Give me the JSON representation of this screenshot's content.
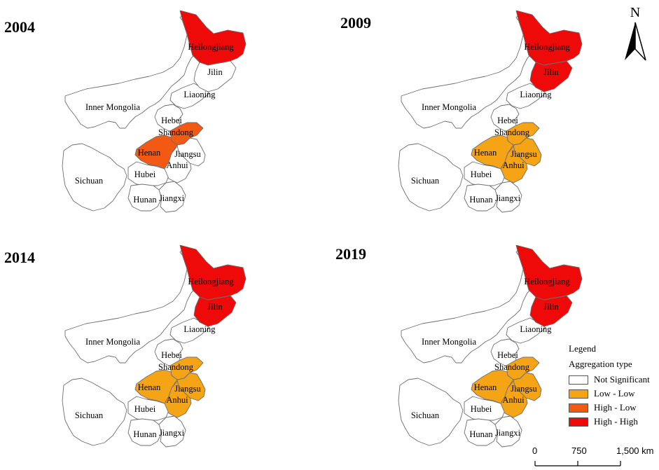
{
  "panels": [
    {
      "year": "2004",
      "Heilongjiang": "hh",
      "Jilin": "ns",
      "Henan": "hl",
      "Shandong": "hl",
      "Anhui": "ns",
      "Jiangsu": "ns"
    },
    {
      "year": "2009",
      "Heilongjiang": "hh",
      "Jilin": "hh",
      "Henan": "ll",
      "Shandong": "ll",
      "Anhui": "ll",
      "Jiangsu": "ll"
    },
    {
      "year": "2014",
      "Heilongjiang": "hh",
      "Jilin": "hh",
      "Henan": "ll",
      "Shandong": "ll",
      "Anhui": "ll",
      "Jiangsu": "ll"
    },
    {
      "year": "2019",
      "Heilongjiang": "hh",
      "Jilin": "hh",
      "Henan": "ll",
      "Shandong": "ll",
      "Anhui": "ll",
      "Jiangsu": "ll"
    }
  ],
  "province_labels": {
    "Heilongjiang": "Heilongjiang",
    "Jilin": "Jilin",
    "Liaoning": "Liaoning",
    "InnerMongolia": "Inner Mongolia",
    "Hebei": "Hebei",
    "Shandong": "Shandong",
    "Henan": "Henan",
    "Jiangsu": "Jiangsu",
    "Anhui": "Anhui",
    "Hubei": "Hubei",
    "Sichuan": "Sichuan",
    "Hunan": "Hunan",
    "Jiangxi": "Jiangxi"
  },
  "legend": {
    "title": "Legend",
    "subtitle": "Aggregation type",
    "items": [
      {
        "key": "ns",
        "label": "Not Significant",
        "color": "#ffffff"
      },
      {
        "key": "ll",
        "label": "Low - Low",
        "color": "#f5a415"
      },
      {
        "key": "hl",
        "label": "High - Low",
        "color": "#f25a14"
      },
      {
        "key": "hh",
        "label": "High - High",
        "color": "#ef0a0a"
      }
    ]
  },
  "north_arrow": {
    "label": "N"
  },
  "scale_bar": {
    "labels": [
      "0",
      "750",
      "1,500 km"
    ]
  }
}
